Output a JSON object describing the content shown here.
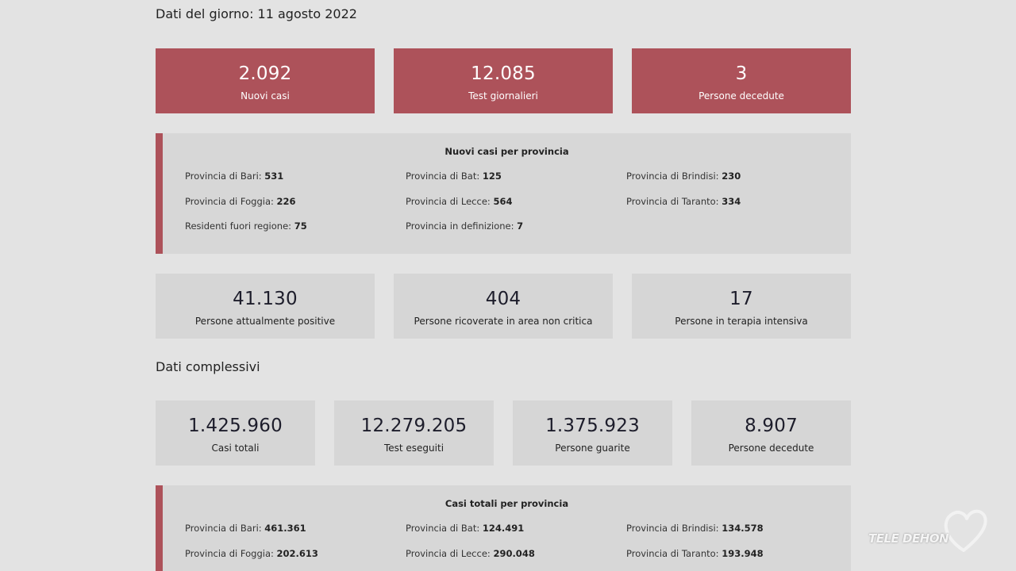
{
  "daily": {
    "heading": "Dati del giorno: 11 agosto 2022",
    "cards": [
      {
        "value": "2.092",
        "label": "Nuovi casi"
      },
      {
        "value": "12.085",
        "label": "Test giornalieri"
      },
      {
        "value": "3",
        "label": "Persone decedute"
      }
    ],
    "provinces_panel": {
      "title": "Nuovi casi per provincia",
      "rows": [
        [
          {
            "label": "Provincia di Bari:",
            "value": "531"
          },
          {
            "label": "Provincia di Bat:",
            "value": "125"
          },
          {
            "label": "Provincia di Brindisi:",
            "value": "230"
          }
        ],
        [
          {
            "label": "Provincia di Foggia:",
            "value": "226"
          },
          {
            "label": "Provincia di Lecce:",
            "value": "564"
          },
          {
            "label": "Provincia di Taranto:",
            "value": "334"
          }
        ],
        [
          {
            "label": "Residenti fuori regione:",
            "value": "75"
          },
          {
            "label": "Provincia in definizione:",
            "value": "7"
          }
        ]
      ]
    },
    "stats": [
      {
        "value": "41.130",
        "label": "Persone attualmente positive"
      },
      {
        "value": "404",
        "label": "Persone ricoverate in area non critica"
      },
      {
        "value": "17",
        "label": "Persone in terapia intensiva"
      }
    ]
  },
  "total": {
    "heading": "Dati complessivi",
    "cards": [
      {
        "value": "1.425.960",
        "label": "Casi totali"
      },
      {
        "value": "12.279.205",
        "label": "Test eseguiti"
      },
      {
        "value": "1.375.923",
        "label": "Persone guarite"
      },
      {
        "value": "8.907",
        "label": "Persone decedute"
      }
    ],
    "provinces_panel": {
      "title": "Casi totali per provincia",
      "rows": [
        [
          {
            "label": "Provincia di Bari:",
            "value": "461.361"
          },
          {
            "label": "Provincia di Bat:",
            "value": "124.491"
          },
          {
            "label": "Provincia di Brindisi:",
            "value": "134.578"
          }
        ],
        [
          {
            "label": "Provincia di Foggia:",
            "value": "202.613"
          },
          {
            "label": "Provincia di Lecce:",
            "value": "290.048"
          },
          {
            "label": "Provincia di Taranto:",
            "value": "193.948"
          }
        ]
      ]
    }
  },
  "watermark": {
    "text": "TELE DEHON",
    "icon": "heart-logo-icon"
  },
  "colors": {
    "accent": "#ad525a",
    "card_grey": "#d6d6d6",
    "background": "#e3e3e3"
  }
}
